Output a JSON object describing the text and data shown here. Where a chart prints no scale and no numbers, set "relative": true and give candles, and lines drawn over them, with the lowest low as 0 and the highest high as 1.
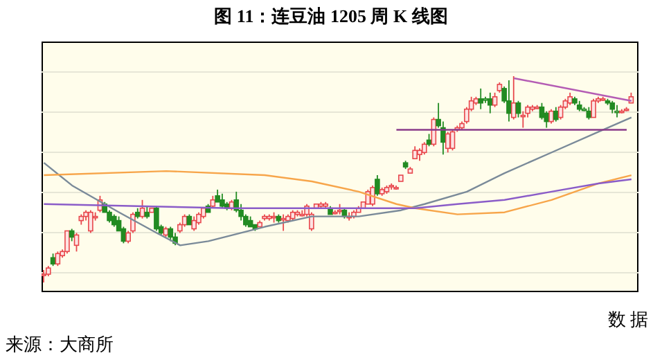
{
  "chart_data": {
    "type": "candlestick",
    "title": "图 11：连豆油 1205 周 K 线图",
    "relative": true,
    "grid": "y",
    "tick_labels": false,
    "annotations": [
      "数 据",
      "来源：大商所"
    ],
    "categories": [
      null,
      null,
      null,
      null,
      null,
      null,
      null,
      null,
      null,
      null,
      null,
      null,
      null,
      null,
      null,
      null,
      null,
      null,
      null,
      null,
      null,
      null,
      null,
      null,
      null,
      null,
      null,
      null,
      null,
      null,
      null,
      null,
      null,
      null,
      null,
      null,
      null,
      null,
      null,
      null,
      null,
      null,
      null,
      null,
      null,
      null,
      null,
      null,
      null,
      null,
      null,
      null,
      null,
      null,
      null,
      null,
      null,
      null,
      null,
      null,
      null,
      null,
      null,
      null,
      null,
      null,
      null,
      null,
      null,
      null,
      null,
      null,
      null,
      null,
      null,
      null,
      null,
      null,
      null,
      null,
      null,
      null,
      null,
      null,
      null,
      null,
      null,
      null,
      null,
      null,
      null,
      null,
      null,
      null,
      null,
      null,
      null,
      null,
      null,
      null,
      null,
      null,
      null,
      null,
      null,
      null,
      null,
      null,
      null,
      null,
      null,
      null,
      null,
      null,
      null,
      null,
      null,
      null,
      null,
      null,
      null,
      null,
      null,
      null,
      null,
      null
    ],
    "series": [
      {
        "type": "line",
        "color": "#7a8a99",
        "values": [
          0.58,
          null,
          null,
          null,
          null,
          null,
          0.47,
          null,
          null,
          null,
          null,
          null,
          null,
          null,
          null,
          null,
          0.34,
          null,
          null,
          null,
          null,
          null,
          null,
          null,
          0.24,
          null,
          null,
          null,
          null,
          0.18,
          null,
          null,
          null,
          null,
          null,
          0.2,
          null,
          null,
          null,
          null,
          null,
          null,
          null,
          null,
          null,
          null,
          null,
          0.27,
          null,
          null,
          null,
          null,
          null,
          null,
          null,
          null,
          null,
          0.32,
          null,
          null,
          null,
          null,
          null,
          null,
          null,
          null,
          null,
          0.32,
          null,
          null,
          null,
          null,
          null,
          null,
          null,
          null,
          0.35,
          null,
          null,
          null,
          null,
          0.38,
          null,
          null,
          null,
          null,
          null,
          null,
          null,
          null,
          0.44,
          null,
          null,
          null,
          null,
          null,
          null,
          null,
          0.53,
          null,
          null,
          null,
          null,
          null,
          null,
          null,
          null,
          null,
          0.63,
          null,
          null,
          null,
          null,
          null,
          null,
          null,
          null,
          null,
          0.73,
          null,
          null,
          null,
          null,
          null,
          null,
          0.8
        ]
      },
      {
        "type": "line",
        "color": "#f7a54a",
        "values": [
          0.52,
          null,
          null,
          null,
          null,
          null,
          null,
          null,
          null,
          null,
          null,
          null,
          null,
          null,
          null,
          null,
          null,
          null,
          null,
          null,
          null,
          null,
          null,
          null,
          null,
          null,
          0.54,
          null,
          null,
          null,
          null,
          null,
          null,
          null,
          null,
          null,
          null,
          null,
          null,
          null,
          null,
          null,
          null,
          null,
          null,
          null,
          null,
          0.52,
          null,
          null,
          null,
          null,
          null,
          null,
          null,
          null,
          null,
          0.49,
          null,
          null,
          null,
          null,
          null,
          null,
          null,
          null,
          null,
          0.44,
          null,
          null,
          null,
          null,
          null,
          null,
          null,
          0.38,
          null,
          null,
          null,
          0.36,
          null,
          null,
          null,
          null,
          null,
          null,
          null,
          null,
          0.33,
          null,
          null,
          null,
          null,
          null,
          null,
          null,
          null,
          null,
          0.34,
          null,
          null,
          null,
          null,
          null,
          null,
          null,
          null,
          null,
          0.4,
          null,
          null,
          null,
          null,
          null,
          null,
          null,
          null,
          null,
          0.48,
          null,
          null,
          null,
          null,
          null,
          null,
          0.52
        ]
      },
      {
        "type": "line",
        "color": "#8a5cc8",
        "values": [
          0.38,
          null,
          null,
          null,
          null,
          null,
          null,
          null,
          null,
          null,
          null,
          null,
          null,
          null,
          null,
          null,
          null,
          null,
          null,
          null,
          null,
          null,
          null,
          null,
          null,
          null,
          null,
          null,
          null,
          null,
          null,
          null,
          null,
          null,
          null,
          null,
          null,
          null,
          null,
          null,
          0.36,
          null,
          null,
          null,
          null,
          null,
          null,
          null,
          null,
          null,
          null,
          null,
          null,
          null,
          null,
          null,
          null,
          null,
          null,
          null,
          null,
          null,
          null,
          null,
          null,
          null,
          null,
          null,
          null,
          null,
          null,
          null,
          null,
          null,
          null,
          null,
          null,
          null,
          null,
          0.36,
          null,
          null,
          null,
          null,
          null,
          null,
          null,
          null,
          0.38,
          null,
          null,
          null,
          null,
          null,
          null,
          null,
          null,
          null,
          0.4,
          null,
          null,
          null,
          null,
          null,
          null,
          null,
          null,
          null,
          0.44,
          null,
          null,
          null,
          null,
          null,
          null,
          null,
          null,
          null,
          0.48,
          null,
          null,
          null,
          null,
          null,
          null,
          0.5
        ]
      },
      {
        "type": "line",
        "color": "#b45cb4",
        "values": [
          null,
          null,
          null,
          null,
          null,
          null,
          null,
          null,
          null,
          null,
          null,
          null,
          null,
          null,
          null,
          null,
          null,
          null,
          null,
          null,
          null,
          null,
          null,
          null,
          null,
          null,
          null,
          null,
          null,
          null,
          null,
          null,
          null,
          null,
          null,
          null,
          null,
          null,
          null,
          null,
          null,
          null,
          null,
          null,
          null,
          null,
          null,
          null,
          null,
          null,
          null,
          null,
          null,
          null,
          null,
          null,
          null,
          null,
          null,
          null,
          null,
          null,
          null,
          null,
          null,
          null,
          null,
          null,
          null,
          null,
          null,
          null,
          null,
          null,
          null,
          null,
          null,
          null,
          null,
          null,
          null,
          null,
          null,
          null,
          null,
          null,
          null,
          null,
          null,
          null,
          null,
          null,
          null,
          null,
          null,
          null,
          null,
          null,
          null,
          null,
          0.99,
          null,
          null,
          null,
          null,
          null,
          null,
          null,
          null,
          null,
          null,
          null,
          null,
          null,
          null,
          null,
          null,
          null,
          null,
          null,
          null,
          null,
          null,
          null,
          null,
          0.88
        ]
      },
      {
        "type": "line",
        "color": "#8a3a8a",
        "values": [
          null,
          null,
          null,
          null,
          null,
          null,
          null,
          null,
          null,
          null,
          null,
          null,
          null,
          null,
          null,
          null,
          null,
          null,
          null,
          null,
          null,
          null,
          null,
          null,
          null,
          null,
          null,
          null,
          null,
          null,
          null,
          null,
          null,
          null,
          null,
          null,
          null,
          null,
          null,
          null,
          null,
          null,
          null,
          null,
          null,
          null,
          null,
          null,
          null,
          null,
          null,
          null,
          null,
          null,
          null,
          null,
          null,
          null,
          null,
          null,
          null,
          null,
          null,
          null,
          null,
          null,
          null,
          null,
          null,
          null,
          null,
          null,
          null,
          null,
          null,
          0.74,
          null,
          null,
          null,
          null,
          null,
          null,
          null,
          null,
          null,
          null,
          null,
          null,
          null,
          null,
          null,
          null,
          null,
          null,
          null,
          null,
          null,
          null,
          null,
          null,
          null,
          null,
          null,
          null,
          null,
          null,
          null,
          null,
          null,
          null,
          null,
          null,
          null,
          null,
          null,
          null,
          null,
          null,
          null,
          null,
          null,
          null,
          null,
          null,
          0.74,
          null
        ]
      },
      {
        "type": "candlestick",
        "ohlc": [
          [
            0.04,
            0.06,
            0,
            0.04
          ],
          [
            0.04,
            0.08,
            0.03,
            0.07
          ],
          [
            0.12,
            0.14,
            0.08,
            0.09
          ],
          [
            0.09,
            0.15,
            0.08,
            0.14
          ],
          [
            0.13,
            0.16,
            0.12,
            0.15
          ],
          [
            0.15,
            0.25,
            0.14,
            0.25
          ],
          [
            0.25,
            0.26,
            0.2,
            0.22
          ],
          [
            0.18,
            0.24,
            0.15,
            0.23
          ],
          [
            0.3,
            0.33,
            0.28,
            0.32
          ],
          [
            0.32,
            0.35,
            0.3,
            0.34
          ],
          [
            0.25,
            0.35,
            0.24,
            0.34
          ],
          [
            0.32,
            0.34,
            0.3,
            0.32
          ],
          [
            0.35,
            0.42,
            0.34,
            0.4
          ],
          [
            0.38,
            0.39,
            0.34,
            0.34
          ],
          [
            0.34,
            0.35,
            0.29,
            0.3
          ],
          [
            0.32,
            0.33,
            0.27,
            0.28
          ],
          [
            0.3,
            0.32,
            0.25,
            0.25
          ],
          [
            0.26,
            0.27,
            0.19,
            0.2
          ],
          [
            0.2,
            0.25,
            0.19,
            0.24
          ],
          [
            0.25,
            0.34,
            0.24,
            0.33
          ],
          [
            0.34,
            0.36,
            0.31,
            0.32
          ],
          [
            0.32,
            0.4,
            0.31,
            0.36
          ],
          [
            0.34,
            0.37,
            0.31,
            0.32
          ],
          [
            0.34,
            0.36,
            0.34,
            0.36
          ],
          [
            0.36,
            0.37,
            0.25,
            0.26
          ],
          [
            0.27,
            0.28,
            0.23,
            0.24
          ],
          [
            0.23,
            0.27,
            0.22,
            0.26
          ],
          [
            0.26,
            0.27,
            0.2,
            0.22
          ],
          [
            0.22,
            0.24,
            0.18,
            0.19
          ],
          [
            0.25,
            0.29,
            0.24,
            0.28
          ],
          [
            0.28,
            0.33,
            0.27,
            0.32
          ],
          [
            0.32,
            0.33,
            0.28,
            0.28
          ],
          [
            0.26,
            0.32,
            0.25,
            0.3
          ],
          [
            0.29,
            0.34,
            0.28,
            0.33
          ],
          [
            0.32,
            0.36,
            0.31,
            0.36
          ],
          [
            0.37,
            0.38,
            0.34,
            0.34
          ],
          [
            0.37,
            0.42,
            0.36,
            0.4
          ],
          [
            0.42,
            0.45,
            0.39,
            0.39
          ],
          [
            0.4,
            0.43,
            0.36,
            0.37
          ],
          [
            0.38,
            0.39,
            0.35,
            0.36
          ],
          [
            0.36,
            0.4,
            0.35,
            0.39
          ],
          [
            0.4,
            0.44,
            0.34,
            0.35
          ],
          [
            0.35,
            0.38,
            0.3,
            0.32
          ],
          [
            0.32,
            0.33,
            0.27,
            0.28
          ],
          [
            0.3,
            0.32,
            0.27,
            0.27
          ],
          [
            0.28,
            0.28,
            0.25,
            0.26
          ],
          [
            0.27,
            0.3,
            0.27,
            0.29
          ],
          [
            0.31,
            0.33,
            0.3,
            0.32
          ],
          [
            0.31,
            0.33,
            0.3,
            0.32
          ],
          [
            0.32,
            0.34,
            0.29,
            0.32
          ],
          [
            0.32,
            0.33,
            0.29,
            0.3
          ],
          [
            0.31,
            0.33,
            0.25,
            0.31
          ],
          [
            0.3,
            0.33,
            0.29,
            0.32
          ],
          [
            0.31,
            0.35,
            0.3,
            0.34
          ],
          [
            0.33,
            0.35,
            0.32,
            0.34
          ],
          [
            0.33,
            0.35,
            0.32,
            0.33
          ],
          [
            0.33,
            0.38,
            0.32,
            0.37
          ],
          [
            0.26,
            0.34,
            0.25,
            0.33
          ],
          [
            0.36,
            0.38,
            0.36,
            0.38
          ],
          [
            0.37,
            0.39,
            0.36,
            0.38
          ],
          [
            0.37,
            0.39,
            0.36,
            0.38
          ],
          [
            0.36,
            0.37,
            0.33,
            0.33
          ],
          [
            0.34,
            0.35,
            0.33,
            0.34
          ],
          [
            0.35,
            0.38,
            0.33,
            0.35
          ],
          [
            0.35,
            0.36,
            0.31,
            0.32
          ],
          [
            0.32,
            0.34,
            0.3,
            0.32
          ],
          [
            0.32,
            0.35,
            0.31,
            0.34
          ],
          [
            0.34,
            0.37,
            0.34,
            0.36
          ],
          [
            0.36,
            0.39,
            0.36,
            0.39
          ],
          [
            0.38,
            0.45,
            0.38,
            0.44
          ],
          [
            0.38,
            0.47,
            0.37,
            0.46
          ],
          [
            0.5,
            0.52,
            0.42,
            0.43
          ],
          [
            0.43,
            0.46,
            0.42,
            0.45
          ],
          [
            0.44,
            0.47,
            0.43,
            0.46
          ],
          [
            0.47,
            0.48,
            0.45,
            0.47
          ],
          [
            0.46,
            0.47,
            0.45,
            0.46
          ],
          [
            0.49,
            0.52,
            0.49,
            0.52
          ],
          [
            0.58,
            0.59,
            0.55,
            0.56
          ],
          [
            0.53,
            0.56,
            0.53,
            0.55
          ],
          [
            0.6,
            0.66,
            0.6,
            0.64
          ],
          [
            0.62,
            0.65,
            0.59,
            0.64
          ],
          [
            0.63,
            0.68,
            0.62,
            0.67
          ],
          [
            0.69,
            0.72,
            0.66,
            0.67
          ],
          [
            0.67,
            0.8,
            0.66,
            0.79
          ],
          [
            0.79,
            0.87,
            0.75,
            0.76
          ],
          [
            0.75,
            0.78,
            0.62,
            0.68
          ],
          [
            0.65,
            0.73,
            0.63,
            0.72
          ],
          [
            0.65,
            0.74,
            0.64,
            0.73
          ],
          [
            0.74,
            0.76,
            0.73,
            0.75
          ],
          [
            0.75,
            0.78,
            0.74,
            0.77
          ],
          [
            0.78,
            0.85,
            0.77,
            0.84
          ],
          [
            0.84,
            0.9,
            0.83,
            0.88
          ],
          [
            0.87,
            0.9,
            0.86,
            0.89
          ],
          [
            0.89,
            0.94,
            0.84,
            0.87
          ],
          [
            0.89,
            0.9,
            0.87,
            0.89
          ],
          [
            0.89,
            0.92,
            0.82,
            0.86
          ],
          [
            0.86,
            0.92,
            0.85,
            0.9
          ],
          [
            0.93,
            0.97,
            0.92,
            0.96
          ],
          [
            0.94,
            0.95,
            0.87,
            0.88
          ],
          [
            0.88,
            0.98,
            0.78,
            0.82
          ],
          [
            0.8,
            1,
            0.79,
            0.87
          ],
          [
            0.87,
            0.88,
            0.8,
            0.82
          ],
          [
            0.81,
            0.83,
            0.75,
            0.81
          ],
          [
            0.82,
            0.86,
            0.8,
            0.85
          ],
          [
            0.84,
            0.86,
            0.83,
            0.85
          ],
          [
            0.85,
            0.86,
            0.84,
            0.85
          ],
          [
            0.85,
            0.87,
            0.79,
            0.8
          ],
          [
            0.82,
            0.83,
            0.75,
            0.78
          ],
          [
            0.78,
            0.84,
            0.77,
            0.83
          ],
          [
            0.83,
            0.85,
            0.78,
            0.79
          ],
          [
            0.8,
            0.86,
            0.79,
            0.85
          ],
          [
            0.85,
            0.89,
            0.84,
            0.88
          ],
          [
            0.87,
            0.92,
            0.86,
            0.9
          ],
          [
            0.89,
            0.9,
            0.86,
            0.87
          ],
          [
            0.86,
            0.88,
            0.83,
            0.84
          ],
          [
            0.84,
            0.85,
            0.83,
            0.84
          ],
          [
            0.83,
            0.85,
            0.79,
            0.8
          ],
          [
            0.8,
            0.89,
            0.8,
            0.88
          ],
          [
            0.88,
            0.9,
            0.87,
            0.89
          ],
          [
            0.89,
            0.9,
            0.88,
            0.89
          ],
          [
            0.88,
            0.89,
            0.86,
            0.87
          ],
          [
            0.87,
            0.88,
            0.82,
            0.84
          ],
          [
            0.83,
            0.86,
            0.8,
            0.83
          ],
          [
            0.83,
            0.84,
            0.82,
            0.83
          ],
          [
            0.84,
            0.85,
            0.83,
            0.84
          ],
          [
            0.87,
            0.92,
            0.87,
            0.9
          ]
        ],
        "colors": [
          "#e8474c",
          "#e8474c",
          "#228b22",
          "#e8474c",
          "#e8474c",
          "#e8474c",
          "#228b22",
          "#e8474c",
          "#e8474c",
          "#e8474c",
          "#e8474c",
          "#e8474c",
          "#e8474c",
          "#228b22",
          "#228b22",
          "#228b22",
          "#228b22",
          "#228b22",
          "#e8474c",
          "#e8474c",
          "#228b22",
          "#e8474c",
          "#228b22",
          "#e8474c",
          "#228b22",
          "#228b22",
          "#e8474c",
          "#228b22",
          "#228b22",
          "#e8474c",
          "#e8474c",
          "#228b22",
          "#e8474c",
          "#e8474c",
          "#e8474c",
          "#228b22",
          "#e8474c",
          "#228b22",
          "#228b22",
          "#228b22",
          "#e8474c",
          "#228b22",
          "#228b22",
          "#228b22",
          "#228b22",
          "#228b22",
          "#e8474c",
          "#e8474c",
          "#e8474c",
          "#e8474c",
          "#228b22",
          "#e8474c",
          "#e8474c",
          "#e8474c",
          "#e8474c",
          "#e8474c",
          "#e8474c",
          "#e8474c",
          "#e8474c",
          "#e8474c",
          "#e8474c",
          "#228b22",
          "#e8474c",
          "#e8474c",
          "#228b22",
          "#e8474c",
          "#e8474c",
          "#e8474c",
          "#e8474c",
          "#e8474c",
          "#e8474c",
          "#228b22",
          "#e8474c",
          "#e8474c",
          "#e8474c",
          "#e8474c",
          "#e8474c",
          "#228b22",
          "#e8474c",
          "#e8474c",
          "#e8474c",
          "#e8474c",
          "#228b22",
          "#e8474c",
          "#228b22",
          "#228b22",
          "#e8474c",
          "#e8474c",
          "#e8474c",
          "#e8474c",
          "#e8474c",
          "#e8474c",
          "#e8474c",
          "#228b22",
          "#228b22",
          "#228b22",
          "#e8474c",
          "#e8474c",
          "#228b22",
          "#228b22",
          "#e8474c",
          "#228b22",
          "#e8474c",
          "#e8474c",
          "#e8474c",
          "#e8474c",
          "#228b22",
          "#228b22",
          "#e8474c",
          "#228b22",
          "#e8474c",
          "#e8474c",
          "#e8474c",
          "#228b22",
          "#228b22",
          "#228b22",
          "#228b22",
          "#e8474c",
          "#e8474c",
          "#e8474c",
          "#228b22",
          "#228b22",
          "#228b22",
          "#e8474c",
          "#e8474c",
          "#e8474c"
        ]
      }
    ]
  }
}
